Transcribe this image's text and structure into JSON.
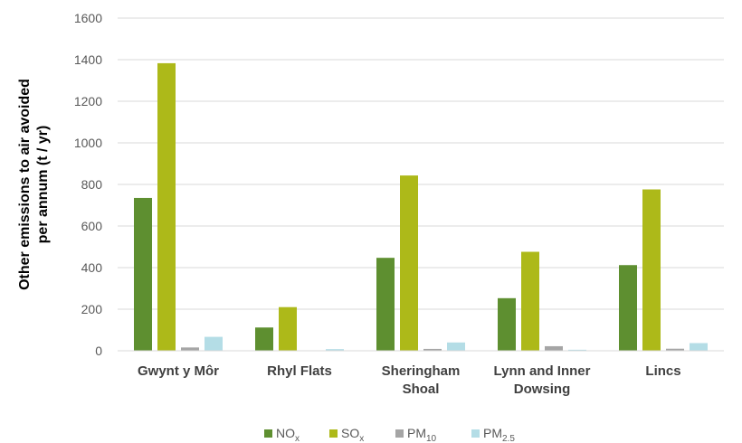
{
  "chart_data": {
    "type": "bar",
    "categories": [
      [
        "Gwynt y Môr"
      ],
      [
        "Rhyl Flats"
      ],
      [
        "Sheringham",
        "Shoal"
      ],
      [
        "Lynn and Inner",
        "Dowsing"
      ],
      [
        "Lincs"
      ]
    ],
    "series": [
      {
        "name": "NO",
        "sub": "x",
        "color": "#5e8f30",
        "values": [
          735,
          112,
          447,
          253,
          412
        ]
      },
      {
        "name": "SO",
        "sub": "x",
        "color": "#adb919",
        "values": [
          1383,
          210,
          843,
          476,
          776
        ]
      },
      {
        "name": "PM",
        "sub": "10",
        "color": "#a5a5a5",
        "values": [
          16,
          2,
          9,
          22,
          10
        ]
      },
      {
        "name": "PM",
        "sub": "2.5",
        "color": "#b4dde6",
        "values": [
          67,
          8,
          40,
          5,
          37
        ]
      }
    ],
    "ylabel": [
      "Other emissions to air avoided",
      "per annum (t / yr)"
    ],
    "ylim": [
      0,
      1600
    ],
    "yticks": [
      0,
      200,
      400,
      600,
      800,
      1000,
      1200,
      1400,
      1600
    ],
    "grid": true,
    "legend": "bottom"
  }
}
